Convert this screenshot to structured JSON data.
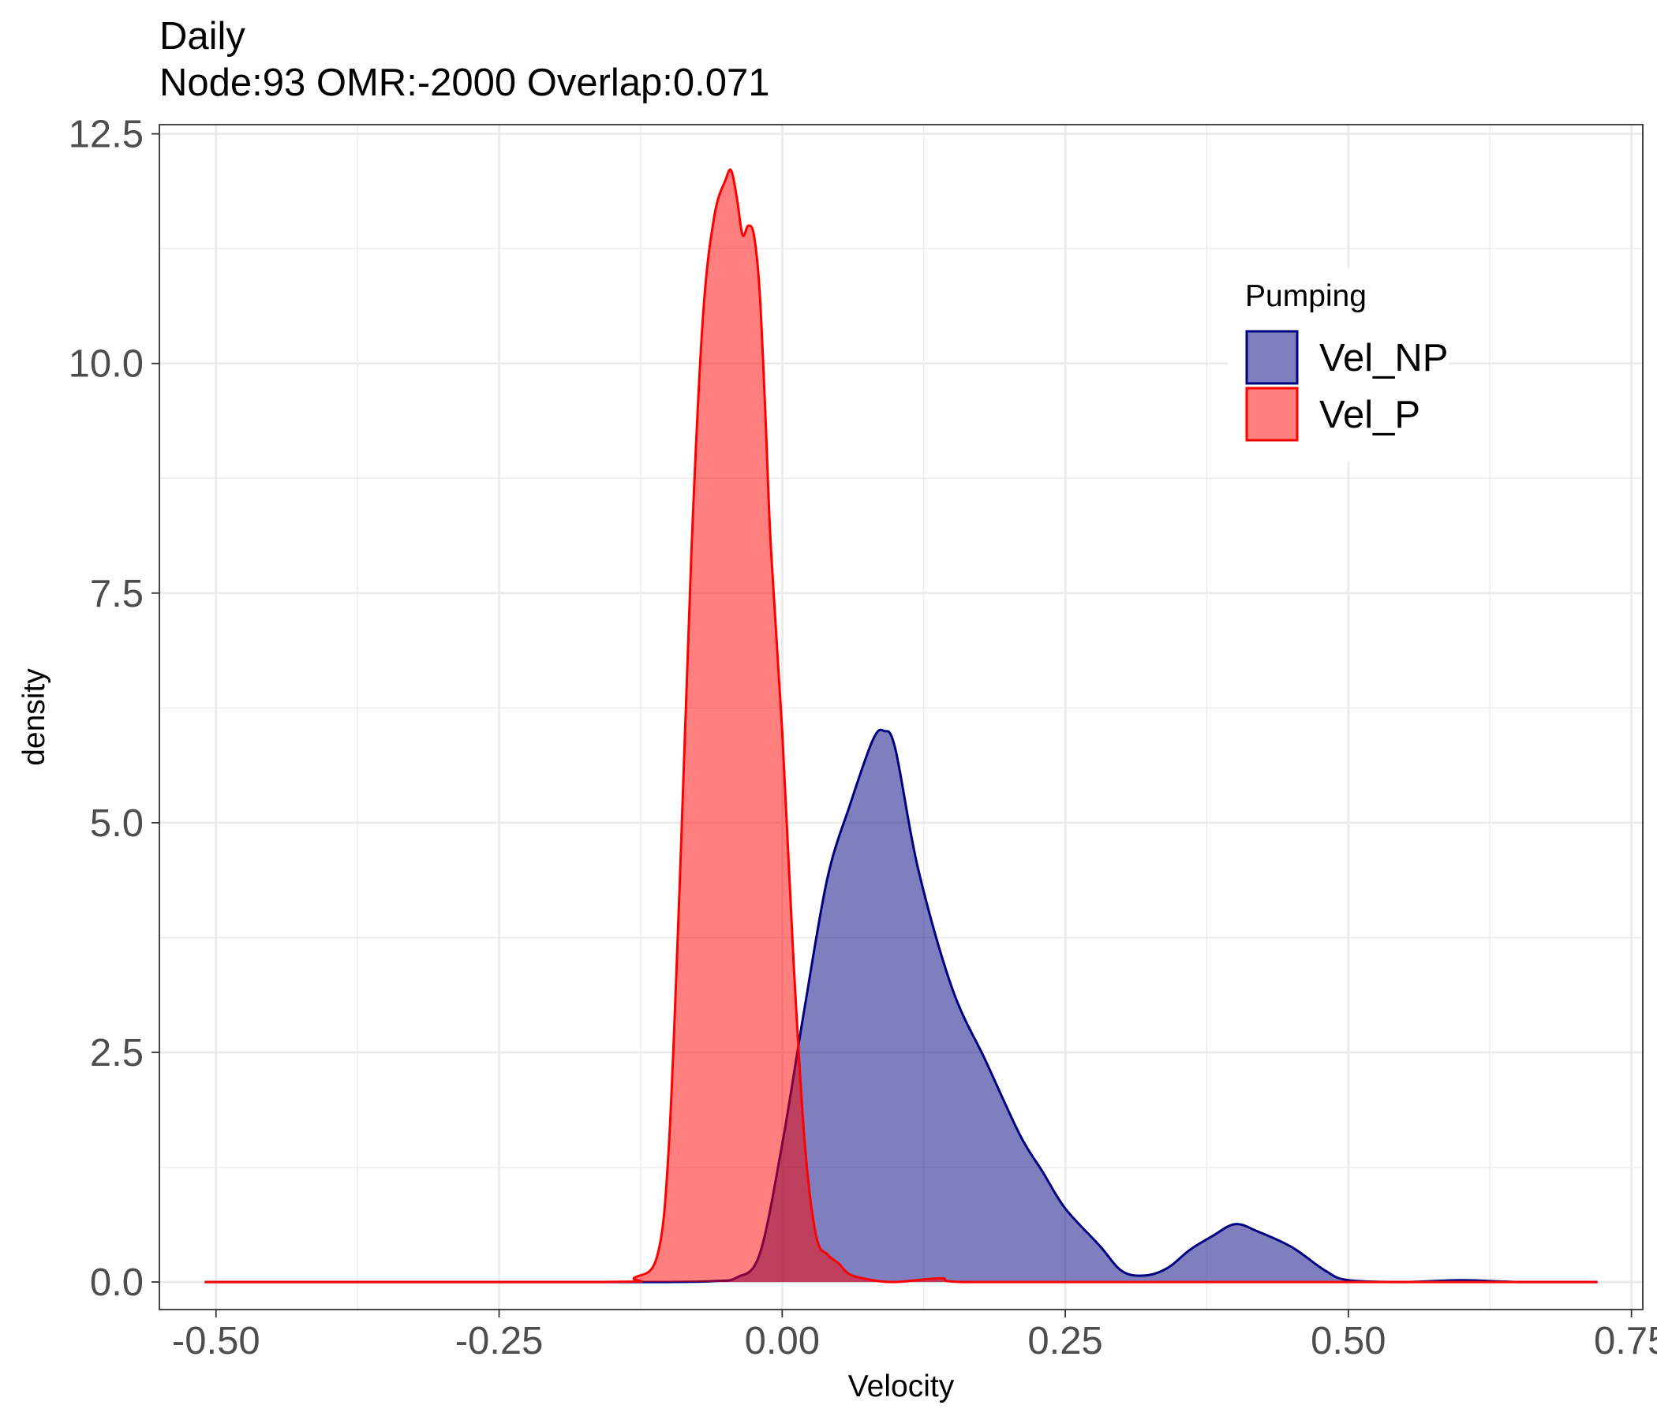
{
  "chart_data": {
    "type": "area",
    "title": "Daily",
    "subtitle": "Node:93 OMR:-2000  Overlap:0.071",
    "xlabel": "Velocity",
    "ylabel": "density",
    "xlim": [
      -0.55,
      0.76
    ],
    "ylim": [
      -0.3,
      12.6
    ],
    "x_ticks": [
      -0.5,
      -0.25,
      0.0,
      0.25,
      0.5,
      0.75
    ],
    "x_tick_labels": [
      "-0.50",
      "-0.25",
      "0.00",
      "0.25",
      "0.50",
      "0.75"
    ],
    "y_ticks": [
      0,
      2.5,
      5,
      7.5,
      10,
      12.5
    ],
    "y_tick_labels": [
      "0.0",
      "2.5",
      "5.0",
      "7.5",
      "10.0",
      "12.5"
    ],
    "grid": true,
    "legend": {
      "title": "Pumping",
      "placement": "top-right",
      "entries": [
        {
          "label": "Vel_NP",
          "series": "Vel_NP"
        },
        {
          "label": "Vel_P",
          "series": "Vel_P"
        }
      ]
    },
    "series": [
      {
        "name": "Vel_NP",
        "line_color": "#000080",
        "fill_color": "#000080",
        "fill_opacity": 0.5,
        "x": [
          -0.51,
          -0.2,
          -0.1,
          -0.06,
          -0.04,
          -0.02,
          0.0,
          0.02,
          0.04,
          0.06,
          0.08,
          0.09,
          0.1,
          0.12,
          0.15,
          0.18,
          0.21,
          0.23,
          0.25,
          0.28,
          0.3,
          0.32,
          0.34,
          0.36,
          0.38,
          0.4,
          0.42,
          0.45,
          0.48,
          0.5,
          0.55,
          0.6,
          0.65,
          0.72
        ],
        "y": [
          0,
          0,
          0,
          0.01,
          0.05,
          0.3,
          1.5,
          3.0,
          4.4,
          5.2,
          5.9,
          6.0,
          5.8,
          4.5,
          3.2,
          2.4,
          1.6,
          1.2,
          0.8,
          0.4,
          0.12,
          0.07,
          0.15,
          0.35,
          0.5,
          0.63,
          0.55,
          0.38,
          0.12,
          0.02,
          0.0,
          0.02,
          0.0,
          0
        ]
      },
      {
        "name": "Vel_P",
        "line_color": "#FF0000",
        "fill_color": "#FF0000",
        "fill_opacity": 0.5,
        "x": [
          -0.51,
          -0.16,
          -0.13,
          -0.11,
          -0.1,
          -0.09,
          -0.08,
          -0.07,
          -0.06,
          -0.05,
          -0.045,
          -0.04,
          -0.035,
          -0.03,
          -0.025,
          -0.02,
          -0.015,
          -0.01,
          0.0,
          0.01,
          0.02,
          0.03,
          0.04,
          0.05,
          0.06,
          0.08,
          0.1,
          0.14,
          0.16,
          0.3,
          0.5,
          0.72
        ],
        "y": [
          0,
          0,
          0.05,
          0.3,
          1.5,
          4.5,
          8.0,
          10.5,
          11.6,
          12.0,
          12.1,
          11.8,
          11.4,
          11.5,
          11.4,
          10.8,
          9.5,
          8.0,
          6.0,
          3.5,
          1.5,
          0.5,
          0.3,
          0.2,
          0.08,
          0.02,
          0.0,
          0.04,
          0.0,
          0,
          0,
          0
        ]
      }
    ]
  }
}
